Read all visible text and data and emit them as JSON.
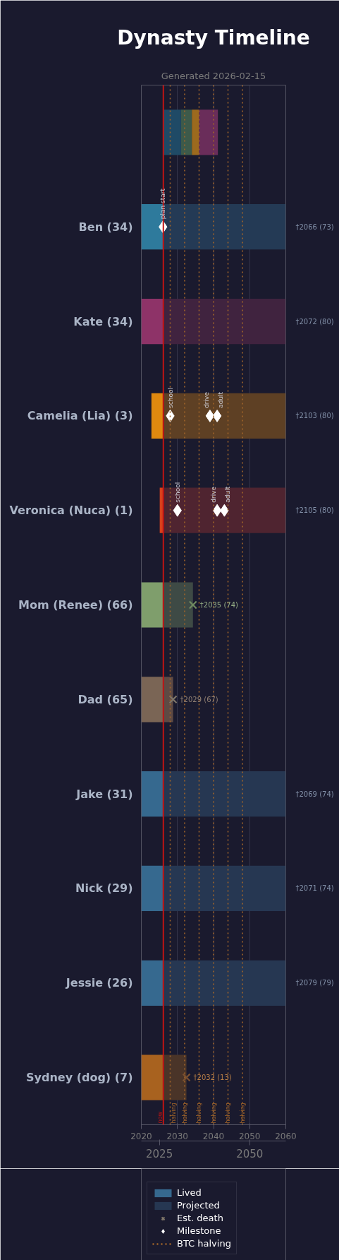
{
  "chart_data": {
    "type": "bar",
    "orientation": "horizontal",
    "title": "Dynasty Timeline",
    "subtitle": "Generated 2026-02-15",
    "categories": [
      null,
      "Ben (34)",
      "Kate (34)",
      "Camelia (Lia) (3)",
      "Veronica (Nuca) (1)",
      "Mom (Renee) (66)",
      "Dad (65)",
      "Jake (31)",
      "Nick (29)",
      "Jessie (26)",
      "Sydney (dog) (7)"
    ],
    "series": [
      {
        "color": "#1f4a66",
        "base": [
          2026.1,
          null,
          null,
          null,
          null,
          null,
          null,
          null,
          null,
          null,
          null
        ],
        "values": [
          4.9,
          null,
          null,
          null,
          null,
          null,
          null,
          null,
          null,
          null,
          null
        ]
      },
      {
        "color": "#3d5a4a",
        "base": [
          2031,
          null,
          null,
          null,
          null,
          null,
          null,
          null,
          null,
          null,
          null
        ],
        "values": [
          3,
          null,
          null,
          null,
          null,
          null,
          null,
          null,
          null,
          null,
          null
        ]
      },
      {
        "color": "#9c6a1e",
        "base": [
          2034,
          null,
          null,
          null,
          null,
          null,
          null,
          null,
          null,
          null,
          null
        ],
        "values": [
          2,
          null,
          null,
          null,
          null,
          null,
          null,
          null,
          null,
          null,
          null
        ]
      },
      {
        "color": "#6a2d5a",
        "base": [
          2036,
          null,
          null,
          null,
          null,
          null,
          null,
          null,
          null,
          null,
          null
        ],
        "values": [
          5.2,
          null,
          null,
          null,
          null,
          null,
          null,
          null,
          null,
          null,
          null
        ]
      },
      {
        "name": "Lived",
        "color": "#36698f",
        "colors": [
          null,
          "#2e7a9c",
          "#8e3368",
          "#e0890f",
          "#d8401c",
          "#7f9e6c",
          "#7a6555",
          "#36698f",
          "#36698f",
          "#36698f",
          "#a8621f"
        ],
        "base": [
          null,
          2020,
          2020,
          2022.8,
          2025.1,
          2020,
          2020,
          2020,
          2020,
          2020,
          2020
        ],
        "values": [
          null,
          6.1,
          6.1,
          3.3,
          1.0,
          6.1,
          6.1,
          6.1,
          6.1,
          6.1,
          6.1
        ]
      },
      {
        "name": "Projected",
        "color": "#263752",
        "colors": [
          null,
          "#243a55",
          "#40233f",
          "#5e4024",
          "#4f2430",
          "#3e4a45",
          "#5e4a44",
          "#263752",
          "#263752",
          "#263752",
          "#4a3428"
        ],
        "base": [
          null,
          2026.1,
          2026.1,
          2026.1,
          2026.1,
          2026.1,
          2026.1,
          2026.1,
          2026.1,
          2026.1,
          2026.1
        ],
        "values": [
          null,
          33.9,
          33.9,
          33.9,
          33.9,
          8.2,
          2.7,
          33.9,
          33.9,
          33.9,
          6.4
        ],
        "value_labels": [
          null,
          "†2066 (73)",
          "†2072 (80)",
          "†2103 (80)",
          "†2105 (80)",
          "†2035 (74)",
          "†2029 (67)",
          "†2069 (74)",
          "†2071 (74)",
          "†2079 (79)",
          "†2032 (13)"
        ]
      },
      {
        "name": "Est. death",
        "type": "scatter",
        "marker": "cross",
        "color": "#7d7468",
        "colors": [
          "#6f8a60",
          "#7d7468",
          "#7a5030"
        ],
        "x": [
          "Mom (Renee) (66)",
          "Dad (65)",
          "Sydney (dog) (7)"
        ],
        "values": [
          2034.3,
          2028.8,
          2032.5
        ]
      },
      {
        "name": "Milestone",
        "type": "scatter",
        "marker": "diamond",
        "color": "#ffffff",
        "x": [
          "Ben (34)",
          "Camelia (Lia) (3)",
          "Camelia (Lia) (3)",
          "Camelia (Lia) (3)",
          "Veronica (Nuca) (1)",
          "Veronica (Nuca) (1)",
          "Veronica (Nuca) (1)"
        ],
        "values": [
          2026,
          2028,
          2039,
          2041,
          2030,
          2041,
          2043
        ],
        "value_labels": [
          "plan start",
          "school",
          "drive",
          "adult",
          "school",
          "drive",
          "adult"
        ]
      }
    ],
    "xlim": [
      2020,
      2060
    ],
    "xticks": [
      2020,
      2030,
      2040,
      2050,
      2060
    ],
    "x2lim": [
      2020,
      2060
    ],
    "x2ticks": [
      2025,
      2050
    ],
    "grid": "x",
    "legend": "bottom left",
    "ref_lines": [
      {
        "axis": "x",
        "value": 2026.1,
        "color": "#c01414",
        "line_style": "solid"
      },
      {
        "axis": "x",
        "value": 2028,
        "label": "BTC halving",
        "color": "#a0642a",
        "line_style": "dotted"
      },
      {
        "axis": "x",
        "value": 2032,
        "color": "#a0642a",
        "line_style": "dotted"
      },
      {
        "axis": "x",
        "value": 2036,
        "color": "#a0642a",
        "line_style": "dotted"
      },
      {
        "axis": "x",
        "value": 2040,
        "color": "#a0642a",
        "line_style": "dotted"
      },
      {
        "axis": "x",
        "value": 2044,
        "color": "#a0642a",
        "line_style": "dotted"
      },
      {
        "axis": "x",
        "value": 2048,
        "color": "#a0642a",
        "line_style": "dotted"
      }
    ],
    "annotations": [
      {
        "text": "now",
        "x": 2026.1
      },
      {
        "text": "halving",
        "x": 2028
      },
      {
        "text": "halving",
        "x": 2032
      },
      {
        "text": "halving",
        "x": 2036
      },
      {
        "text": "halving",
        "x": 2040
      },
      {
        "text": "halving",
        "x": 2044
      },
      {
        "text": "halving",
        "x": 2048
      }
    ]
  }
}
